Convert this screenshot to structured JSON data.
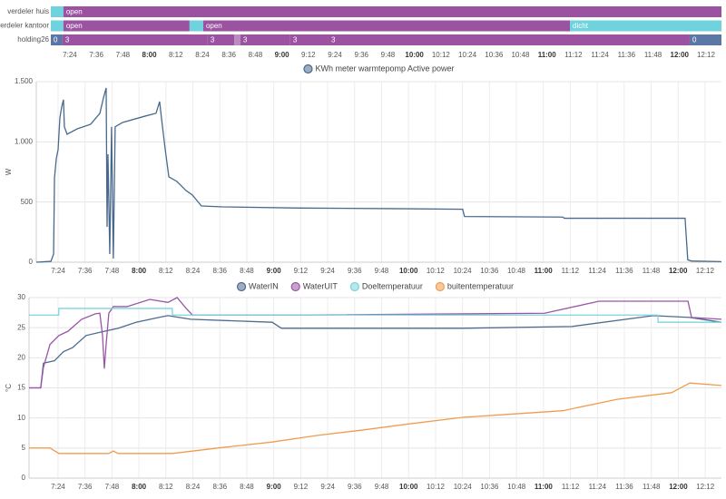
{
  "chart_data": [
    {
      "type": "timeline",
      "xlim": [
        435.4,
        739.0
      ],
      "xticks": [
        {
          "value": 444,
          "label": "7:24"
        },
        {
          "value": 456,
          "label": "7:36"
        },
        {
          "value": 468,
          "label": "7:48"
        },
        {
          "value": 480,
          "label": "8:00"
        },
        {
          "value": 492,
          "label": "8:12"
        },
        {
          "value": 504,
          "label": "8:24"
        },
        {
          "value": 516,
          "label": "8:36"
        },
        {
          "value": 528,
          "label": "8:48"
        },
        {
          "value": 540,
          "label": "9:00"
        },
        {
          "value": 552,
          "label": "9:12"
        },
        {
          "value": 564,
          "label": "9:24"
        },
        {
          "value": 576,
          "label": "9:36"
        },
        {
          "value": 588,
          "label": "9:48"
        },
        {
          "value": 600,
          "label": "10:00"
        },
        {
          "value": 612,
          "label": "10:12"
        },
        {
          "value": 624,
          "label": "10:24"
        },
        {
          "value": 636,
          "label": "10:36"
        },
        {
          "value": 648,
          "label": "10:48"
        },
        {
          "value": 660,
          "label": "11:00"
        },
        {
          "value": 672,
          "label": "11:12"
        },
        {
          "value": 684,
          "label": "11:24"
        },
        {
          "value": 696,
          "label": "11:36"
        },
        {
          "value": 708,
          "label": "11:48"
        },
        {
          "value": 720,
          "label": "12:00"
        },
        {
          "value": 732,
          "label": "12:12"
        }
      ],
      "rows": [
        {
          "name": "verdeler huis",
          "segments": [
            {
              "start": 435.4,
              "end": 441.1,
              "state": null,
              "color": "#6fd3de"
            },
            {
              "start": 441.1,
              "end": 739.0,
              "state": "open",
              "color": "#9b52a0"
            }
          ]
        },
        {
          "name": "verdeler kantoor",
          "segments": [
            {
              "start": 435.4,
              "end": 441.1,
              "state": null,
              "color": "#6fd3de"
            },
            {
              "start": 441.1,
              "end": 498.2,
              "state": "open",
              "color": "#9b52a0"
            },
            {
              "start": 498.2,
              "end": 504.4,
              "state": null,
              "color": "#6fd3de"
            },
            {
              "start": 504.4,
              "end": 670.4,
              "state": "open",
              "color": "#9b52a0"
            },
            {
              "start": 670.4,
              "end": 739.0,
              "state": "dicht",
              "color": "#6fd3de"
            }
          ]
        },
        {
          "name": "holding26",
          "segments": [
            {
              "start": 435.4,
              "end": 440.7,
              "state": "0",
              "color": "#5b77a6"
            },
            {
              "start": 440.7,
              "end": 506.4,
              "state": "3",
              "color": "#9b52a0"
            },
            {
              "start": 506.4,
              "end": 518.4,
              "state": "3",
              "color": "#9b52a0"
            },
            {
              "start": 518.4,
              "end": 521.2,
              "state": null,
              "color": "#b98cbd"
            },
            {
              "start": 521.2,
              "end": 543.8,
              "state": "3",
              "color": "#9b52a0"
            },
            {
              "start": 543.8,
              "end": 561.1,
              "state": "3",
              "color": "#9b52a0"
            },
            {
              "start": 561.1,
              "end": 724.6,
              "state": "3",
              "color": "#9b52a0"
            },
            {
              "start": 724.6,
              "end": 739.0,
              "state": "0",
              "color": "#5b77a6"
            }
          ]
        }
      ]
    },
    {
      "type": "line",
      "y_label": "W",
      "xlim": [
        434.3,
        739.3
      ],
      "ylim": [
        0,
        1500
      ],
      "grid": true,
      "yticks": [
        0,
        500,
        {
          "value": 1000,
          "label": "1.000"
        },
        {
          "value": 1500,
          "label": "1.500"
        }
      ],
      "xticks": [
        {
          "value": 444,
          "label": "7:24"
        },
        {
          "value": 456,
          "label": "7:36"
        },
        {
          "value": 468,
          "label": "7:48"
        },
        {
          "value": 480,
          "label": "8:00"
        },
        {
          "value": 492,
          "label": "8:12"
        },
        {
          "value": 504,
          "label": "8:24"
        },
        {
          "value": 516,
          "label": "8:36"
        },
        {
          "value": 528,
          "label": "8:48"
        },
        {
          "value": 540,
          "label": "9:00"
        },
        {
          "value": 552,
          "label": "9:12"
        },
        {
          "value": 564,
          "label": "9:24"
        },
        {
          "value": 576,
          "label": "9:36"
        },
        {
          "value": 588,
          "label": "9:48"
        },
        {
          "value": 600,
          "label": "10:00"
        },
        {
          "value": 612,
          "label": "10:12"
        },
        {
          "value": 624,
          "label": "10:24"
        },
        {
          "value": 636,
          "label": "10:36"
        },
        {
          "value": 648,
          "label": "10:48"
        },
        {
          "value": 660,
          "label": "11:00"
        },
        {
          "value": 672,
          "label": "11:12"
        },
        {
          "value": 684,
          "label": "11:24"
        },
        {
          "value": 696,
          "label": "11:36"
        },
        {
          "value": 708,
          "label": "11:48"
        },
        {
          "value": 720,
          "label": "12:00"
        },
        {
          "value": 732,
          "label": "12:12"
        }
      ],
      "series": [
        {
          "name": "KWh meter warmtepomp Active power",
          "color": "#48698c",
          "x": [
            434.3,
            440.8,
            442.0,
            442.4,
            443.2,
            444.0,
            444.8,
            445.6,
            446.4,
            446.8,
            448.0,
            452.5,
            458.5,
            462.6,
            464.2,
            465.4,
            465.8,
            466.2,
            467.0,
            467.8,
            468.6,
            469.4,
            472.7,
            482.8,
            487.6,
            489.2,
            490.0,
            491.7,
            493.3,
            496.9,
            500.9,
            503.8,
            507.8,
            517.1,
            551.4,
            591.8,
            624.1,
            624.9,
            668.6,
            669.4,
            723.1,
            724.3,
            725.9,
            739.3
          ],
          "values": [
            0,
            7,
            68,
            700,
            860,
            935,
            1200,
            1290,
            1350,
            1125,
            1063,
            1108,
            1146,
            1237,
            1365,
            1448,
            294,
            897,
            68,
            1125,
            30,
            1125,
            1161,
            1214,
            1237,
            1335,
            1200,
            935,
            709,
            671,
            596,
            558,
            467,
            460,
            450,
            445,
            440,
            380,
            375,
            365,
            365,
            20,
            10,
            5
          ]
        }
      ]
    },
    {
      "type": "line",
      "y_label": "°C",
      "xlim": [
        431.1,
        739.2
      ],
      "ylim": [
        0,
        30
      ],
      "grid": true,
      "yticks": [
        0,
        5,
        10,
        15,
        20,
        25,
        30
      ],
      "xticks": [
        {
          "value": 444,
          "label": "7:24"
        },
        {
          "value": 456,
          "label": "7:36"
        },
        {
          "value": 468,
          "label": "7:48"
        },
        {
          "value": 480,
          "label": "8:00"
        },
        {
          "value": 492,
          "label": "8:12"
        },
        {
          "value": 504,
          "label": "8:24"
        },
        {
          "value": 516,
          "label": "8:36"
        },
        {
          "value": 528,
          "label": "8:48"
        },
        {
          "value": 540,
          "label": "9:00"
        },
        {
          "value": 552,
          "label": "9:12"
        },
        {
          "value": 564,
          "label": "9:24"
        },
        {
          "value": 576,
          "label": "9:36"
        },
        {
          "value": 588,
          "label": "9:48"
        },
        {
          "value": 600,
          "label": "10:00"
        },
        {
          "value": 612,
          "label": "10:12"
        },
        {
          "value": 624,
          "label": "10:24"
        },
        {
          "value": 636,
          "label": "10:36"
        },
        {
          "value": 648,
          "label": "10:48"
        },
        {
          "value": 660,
          "label": "11:00"
        },
        {
          "value": 672,
          "label": "11:12"
        },
        {
          "value": 684,
          "label": "11:24"
        },
        {
          "value": 696,
          "label": "11:36"
        },
        {
          "value": 708,
          "label": "11:48"
        },
        {
          "value": 720,
          "label": "12:00"
        },
        {
          "value": 732,
          "label": "12:12"
        }
      ],
      "series": [
        {
          "name": "WaterIN",
          "color": "#4d6b8f",
          "x": [
            431.1,
            436.3,
            437.5,
            442.4,
            446.4,
            450.5,
            456.5,
            464.6,
            470.7,
            478.7,
            488.8,
            492.9,
            503.0,
            539.3,
            543.4,
            624.1,
            672.6,
            708.9,
            725.1,
            739.2
          ],
          "values": [
            15,
            15,
            19.1,
            19.5,
            21,
            21.7,
            23.7,
            24.4,
            24.9,
            25.9,
            26.7,
            27,
            26.4,
            25.9,
            24.9,
            24.9,
            25.2,
            27,
            26.7,
            25.9
          ]
        },
        {
          "name": "WaterUIT",
          "color": "#9a55a6",
          "x": [
            431.1,
            436.3,
            437.5,
            440.4,
            444.4,
            448.4,
            454.5,
            460.6,
            462.6,
            463.8,
            464.6,
            465.4,
            466.6,
            468.6,
            474.7,
            484.8,
            492.9,
            497.0,
            501.0,
            503.8,
            551.4,
            660.5,
            684.7,
            724.3,
            725.9,
            739.2
          ],
          "values": [
            15,
            15,
            18.4,
            22.2,
            23.7,
            24.4,
            26.4,
            27.3,
            27.4,
            23.7,
            18.2,
            22.2,
            27.4,
            28.5,
            28.5,
            29.7,
            29.2,
            30,
            28.2,
            27.1,
            27.1,
            27.4,
            29.4,
            29.4,
            26.7,
            26.4
          ]
        },
        {
          "name": "Doeltemperatuur",
          "color": "#7dd4dc",
          "x": [
            431.1,
            444.3,
            444.4,
            494.8,
            494.9,
            710.9,
            711.0,
            739.2
          ],
          "values": [
            27.1,
            27.1,
            28.2,
            28.2,
            27.1,
            27.1,
            25.9,
            25.9
          ]
        },
        {
          "name": "buitentemperatuur",
          "color": "#f09c50",
          "x": [
            431.1,
            440.4,
            444.4,
            466.6,
            468.6,
            470.7,
            494.9,
            515.1,
            539.3,
            559.5,
            579.7,
            599.9,
            624.1,
            644.3,
            668.6,
            692.8,
            717.0,
            725.1,
            739.2
          ],
          "values": [
            5,
            5,
            4.1,
            4.1,
            4.5,
            4.1,
            4.1,
            5,
            6,
            7.1,
            8,
            9,
            10.1,
            10.6,
            11.2,
            13.1,
            14.2,
            15.8,
            15.4
          ]
        }
      ]
    }
  ]
}
